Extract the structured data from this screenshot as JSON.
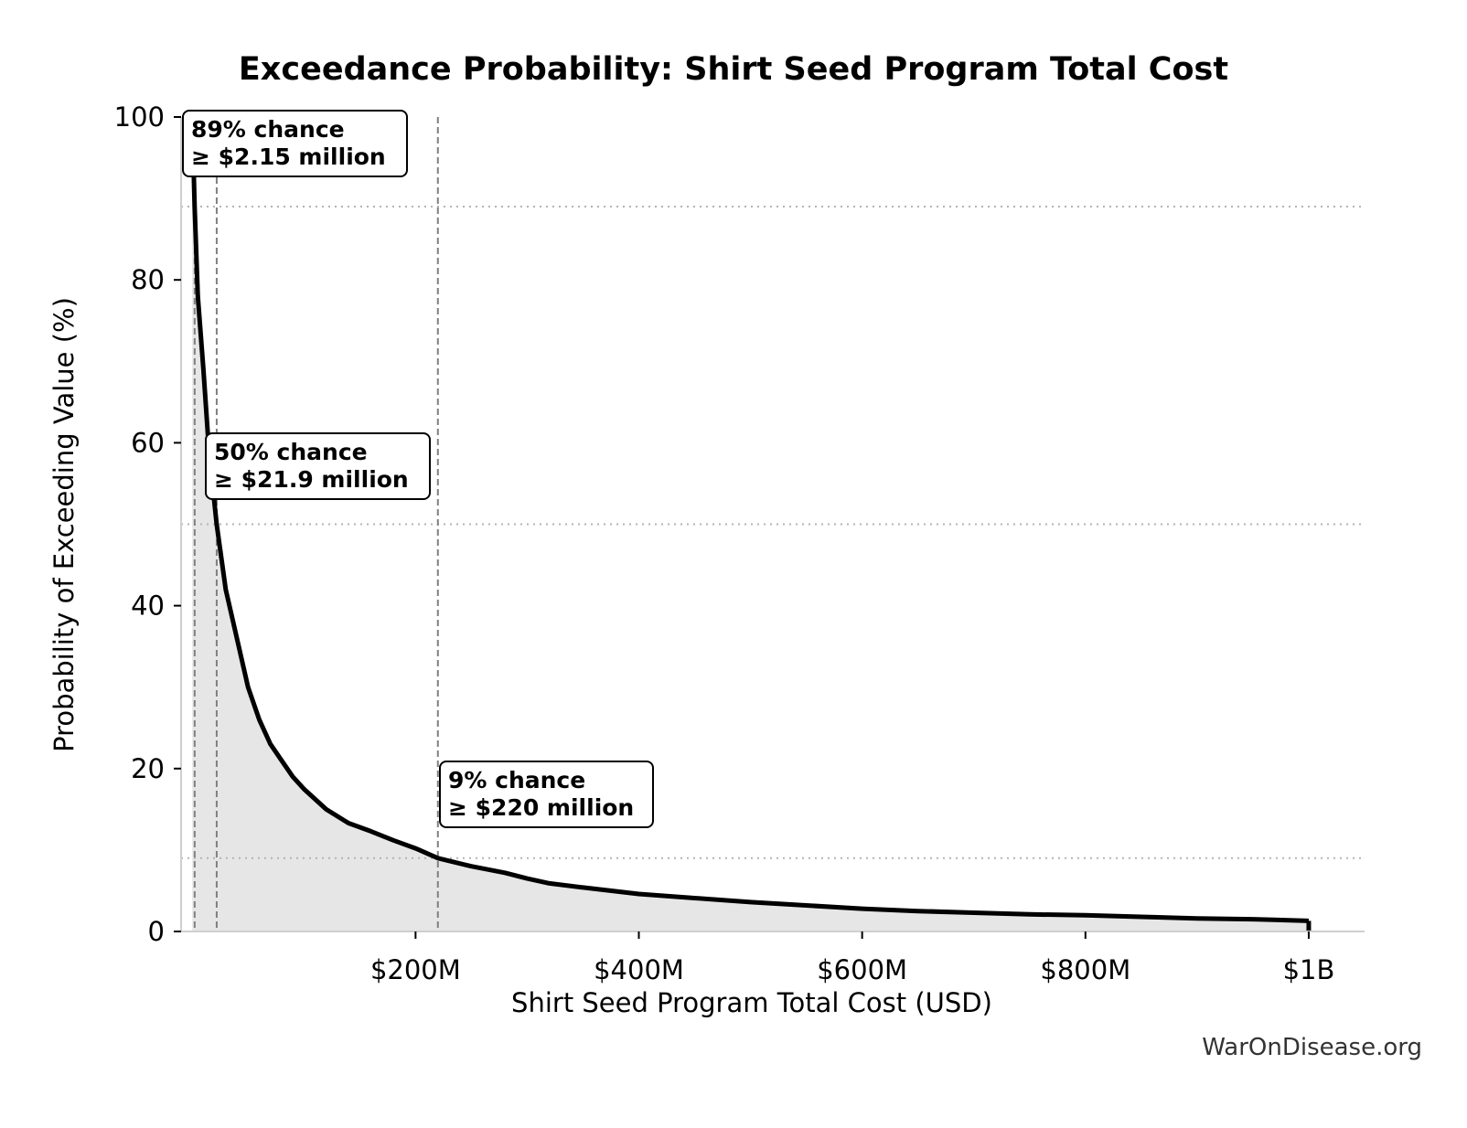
{
  "chart_data": {
    "type": "area",
    "title": "Exceedance Probability: Shirt Seed Program Total Cost",
    "xlabel": "Shirt Seed Program Total Cost (USD)",
    "ylabel": "Probability of Exceeding Value (%)",
    "xlim": [
      -10000000,
      1050000000
    ],
    "ylim": [
      0,
      100
    ],
    "x_ticks": [
      {
        "value": 200000000,
        "label": "$200M"
      },
      {
        "value": 400000000,
        "label": "$400M"
      },
      {
        "value": 600000000,
        "label": "$600M"
      },
      {
        "value": 800000000,
        "label": "$800M"
      },
      {
        "value": 1000000000,
        "label": "$1B"
      }
    ],
    "y_ticks": [
      {
        "value": 0,
        "label": "0"
      },
      {
        "value": 20,
        "label": "20"
      },
      {
        "value": 40,
        "label": "40"
      },
      {
        "value": 60,
        "label": "60"
      },
      {
        "value": 80,
        "label": "80"
      },
      {
        "value": 100,
        "label": "100"
      }
    ],
    "grid": false,
    "series": [
      {
        "x": [
          0,
          1000000,
          2150000,
          5000000,
          10000000,
          15000000,
          21900000,
          30000000,
          40000000,
          50000000,
          60000000,
          70000000,
          80000000,
          90000000,
          100000000,
          120000000,
          140000000,
          160000000,
          180000000,
          200000000,
          220000000,
          250000000,
          280000000,
          300000000,
          320000000,
          350000000,
          400000000,
          450000000,
          500000000,
          550000000,
          600000000,
          650000000,
          700000000,
          750000000,
          800000000,
          850000000,
          900000000,
          950000000,
          1000000000
        ],
        "y": [
          100,
          95,
          89,
          78,
          69,
          59,
          50,
          42,
          36,
          30,
          26,
          23,
          21,
          19,
          17.5,
          15,
          13.3,
          12.3,
          11.2,
          10.2,
          9,
          8,
          7.2,
          6.5,
          5.9,
          5.4,
          4.6,
          4.1,
          3.6,
          3.2,
          2.8,
          2.5,
          2.3,
          2.1,
          2,
          1.8,
          1.6,
          1.5,
          1.3
        ]
      }
    ],
    "reference_lines": [
      {
        "x": 2150000,
        "y": 89
      },
      {
        "x": 21900000,
        "y": 50
      },
      {
        "x": 220000000,
        "y": 9
      }
    ],
    "annotations": [
      {
        "line1": "89% chance",
        "line2": "≥ $2.15 million"
      },
      {
        "line1": "50% chance",
        "line2": "≥ $21.9 million"
      },
      {
        "line1": "9% chance",
        "line2": "≥ $220 million"
      }
    ],
    "colors": {
      "line": "#000000",
      "fill": "#e6e6e6",
      "reference": "#808080",
      "hline": "#b3b3b3"
    }
  },
  "footer": "WarOnDisease.org"
}
